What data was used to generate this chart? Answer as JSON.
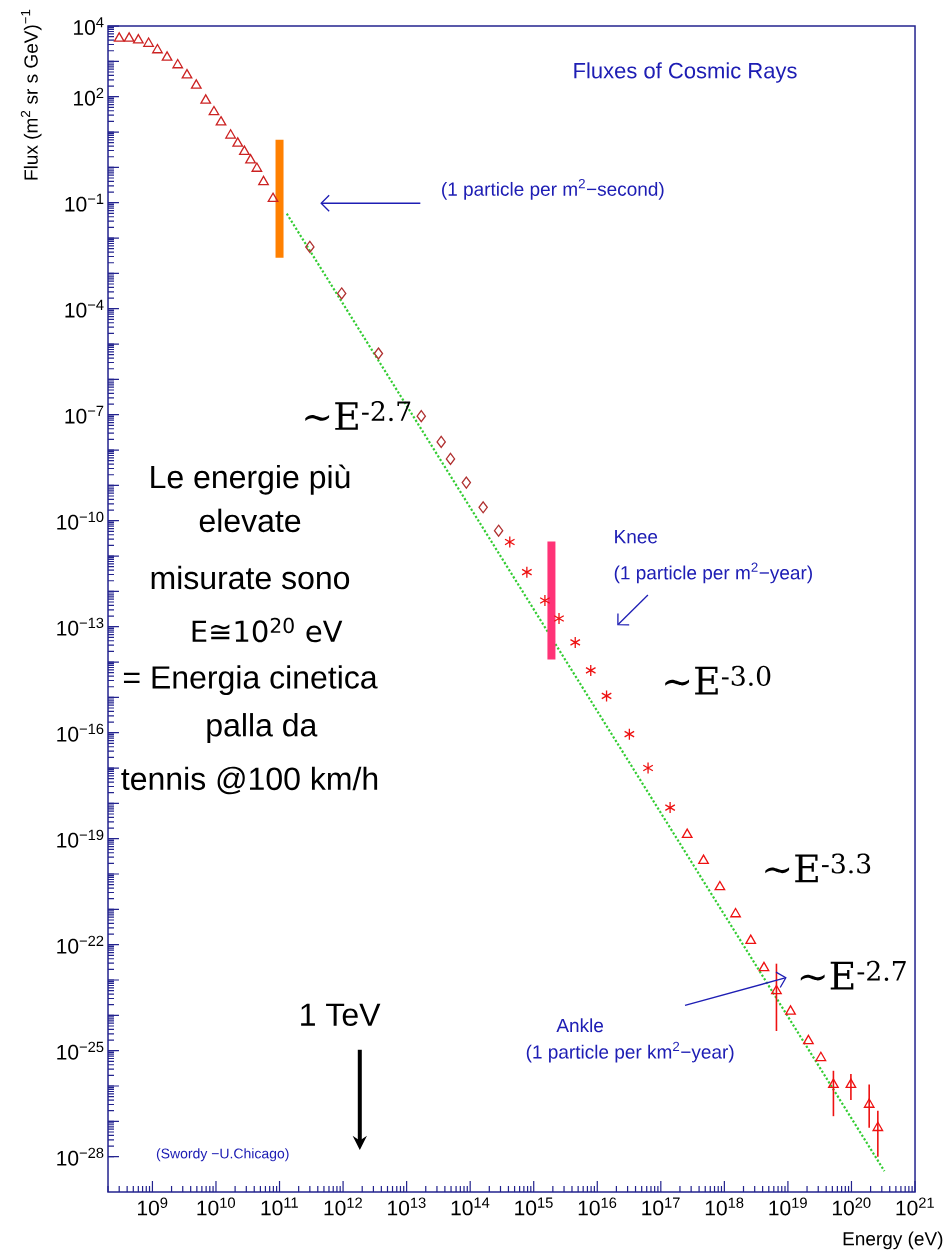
{
  "chart_data": {
    "type": "scatter",
    "title": "Fluxes of Cosmic Rays",
    "xlabel": "Energy (eV)",
    "ylabel": "Flux (m$^{2}$ sr s GeV)$^{−1}$",
    "log": "xy",
    "xlim": [
      200000000.0,
      1e+21
    ],
    "ylim": [
      1e-29,
      10000.0
    ],
    "xticks": [
      {
        "value": 1000000000.0,
        "label": "10$^{9}$"
      },
      {
        "value": 10000000000.0,
        "label": "10$^{10}$"
      },
      {
        "value": 100000000000.0,
        "label": "10$^{11}$"
      },
      {
        "value": 1000000000000.0,
        "label": "10$^{12}$"
      },
      {
        "value": 10000000000000.0,
        "label": "10$^{13}$"
      },
      {
        "value": 100000000000000.0,
        "label": "10$^{14}$"
      },
      {
        "value": 1000000000000000.0,
        "label": "10$^{15}$"
      },
      {
        "value": 1e+16,
        "label": "10$^{16}$"
      },
      {
        "value": 1e+17,
        "label": "10$^{17}$"
      },
      {
        "value": 1e+18,
        "label": "10$^{18}$"
      },
      {
        "value": 1e+19,
        "label": "10$^{19}$"
      },
      {
        "value": 1e+20,
        "label": "10$^{20}$"
      },
      {
        "value": 1e+21,
        "label": "10$^{21}$"
      }
    ],
    "yticks": [
      {
        "value": 1e-28,
        "label": "10$^{−28}$"
      },
      {
        "value": 1e-27,
        "label": null
      },
      {
        "value": 1e-26,
        "label": null
      },
      {
        "value": 1e-25,
        "label": "10$^{−25}$"
      },
      {
        "value": 1e-24,
        "label": null
      },
      {
        "value": 1e-23,
        "label": null
      },
      {
        "value": 1e-22,
        "label": "10$^{−22}$"
      },
      {
        "value": 1e-21,
        "label": null
      },
      {
        "value": 1e-20,
        "label": null
      },
      {
        "value": 1e-19,
        "label": "10$^{−19}$"
      },
      {
        "value": 1e-18,
        "label": null
      },
      {
        "value": 1e-17,
        "label": null
      },
      {
        "value": 1e-16,
        "label": "10$^{−16}$"
      },
      {
        "value": 1e-15,
        "label": null
      },
      {
        "value": 1e-14,
        "label": null
      },
      {
        "value": 1e-13,
        "label": "10$^{−13}$"
      },
      {
        "value": 1e-12,
        "label": null
      },
      {
        "value": 1e-11,
        "label": null
      },
      {
        "value": 1e-10,
        "label": "10$^{−10}$"
      },
      {
        "value": 1e-09,
        "label": null
      },
      {
        "value": 1e-08,
        "label": null
      },
      {
        "value": 1e-07,
        "label": "10$^{−7}$"
      },
      {
        "value": 1e-06,
        "label": null
      },
      {
        "value": 1e-05,
        "label": null
      },
      {
        "value": 0.0001,
        "label": "10$^{−4}$"
      },
      {
        "value": 0.001,
        "label": null
      },
      {
        "value": 0.01,
        "label": null
      },
      {
        "value": 0.1,
        "label": "10$^{−1}$"
      },
      {
        "value": 1,
        "label": null
      },
      {
        "value": 10,
        "label": null
      },
      {
        "value": 100,
        "label": "10$^{2}$"
      },
      {
        "value": 1000,
        "label": null
      },
      {
        "value": 10000,
        "label": "10$^{4}$"
      }
    ],
    "series": [
      {
        "type": "line",
        "color": "#33cc33",
        "line_style": "dotted",
        "x": [
          130000000000.0,
          3.3e+20
        ],
        "values": [
          0.049,
          3.9e-29
        ]
      },
      {
        "marker": "triangle",
        "color": "#cc2222",
        "x": [
          300000000.0,
          430000000.0,
          600000000.0,
          870000000.0,
          1200000000.0,
          1700000000.0,
          2500000000.0,
          3500000000.0,
          4900000000.0,
          6900000000.0,
          9300000000.0,
          12000000000.0,
          17000000000.0,
          22000000000.0,
          28000000000.0,
          35000000000.0,
          44000000000.0,
          56000000000.0,
          79000000000.0
        ],
        "values": [
          4500,
          4500,
          4000,
          3200,
          2100,
          1300,
          790,
          410,
          210,
          79,
          37,
          19,
          8.1,
          4.8,
          2.8,
          1.6,
          0.93,
          0.39,
          0.13
        ]
      },
      {
        "marker": "diamond",
        "color": "#b03030",
        "x": [
          300000000000.0,
          950000000000.0,
          3600000000000.0,
          17000000000000.0,
          35000000000000.0,
          49000000000000.0,
          87000000000000.0,
          160000000000000.0,
          280000000000000.0
        ],
        "values": [
          0.0056,
          0.00027,
          5.4e-06,
          9.1e-08,
          1.7e-08,
          5.6e-09,
          1.2e-09,
          2.4e-10,
          5.2e-11
        ]
      },
      {
        "marker": "cross",
        "color": "#ee1111",
        "x": [
          420000000000000.0,
          780000000000000.0,
          1500000000000000.0,
          2500000000000000.0,
          4500000000000000.0,
          7900000000000000.0,
          1.4e+16,
          3.2e+16,
          6.3e+16,
          1.4e+17
        ],
        "values": [
          2.5e-11,
          3.5e-12,
          5.5e-13,
          1.7e-13,
          3.6e-14,
          5.8e-15,
          1.1e-15,
          9.1e-17,
          1e-17,
          7.6e-19
        ]
      },
      {
        "marker": "triangle",
        "color": "#ee1111",
        "x": [
          2.6e+17,
          4.7e+17,
          8.5e+17,
          1.5e+18,
          2.6e+18,
          4.2e+18,
          6.6e+18,
          1.1e+19,
          2.1e+19,
          3.3e+19,
          5.2e+19,
          9.8e+19,
          1.9e+20,
          2.6e+20
        ],
        "values": [
          1.3e-19,
          2.4e-20,
          4.3e-21,
          7.4e-22,
          1.3e-22,
          2.2e-23,
          4.9e-24,
          1.3e-24,
          1.9e-25,
          6.3e-26,
          1.1e-26,
          1.1e-26,
          3e-27,
          6.6e-28
        ],
        "errors": [
          null,
          null,
          null,
          null,
          null,
          null,
          [
            3.6e-25,
            2.9e-23
          ],
          null,
          null,
          null,
          [
            1.4e-27,
            2.7e-26
          ],
          [
            4e-27,
            2.2e-26
          ],
          [
            6.6e-28,
            1.1e-26
          ],
          [
            1e-28,
            2e-27
          ]
        ]
      }
    ],
    "ref_lines": [
      {
        "axis": "x",
        "value": 100000000000.0,
        "color": "#ff8000"
      },
      {
        "axis": "x",
        "value": 1900000000000000.0,
        "color": "#ff3377"
      }
    ],
    "annotations": [
      "(1 particle per m$^{2}$−second)",
      "Knee",
      "(1 particle per m$^{2}$−year)",
      "Ankle",
      "(1 particle per km$^{2}$−year)",
      "∼E$^{-2.7}$",
      "∼E$^{-3.0}$",
      "∼E$^{-3.3}$",
      "∼E$^{-2.7}$",
      "1 TeV",
      "(Swordy −U.Chicago)",
      "Le energie più",
      "elevate",
      "misurate sono",
      "E≅10$^{20}$ eV",
      "= Energia cinetica",
      "palla da",
      "tennis @100 km/h"
    ]
  }
}
